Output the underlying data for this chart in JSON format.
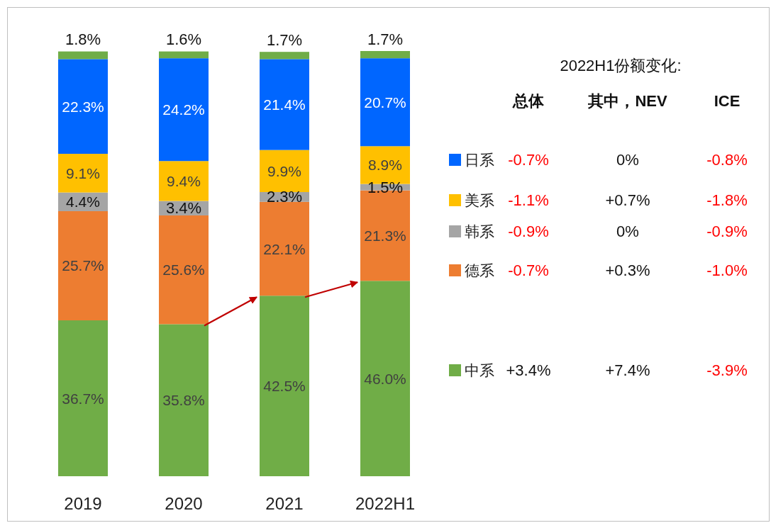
{
  "chart_data": {
    "type": "bar",
    "stacked": true,
    "legend": "right",
    "categories": [
      "2019",
      "2020",
      "2021",
      "2022H1"
    ],
    "series": [
      {
        "name": "中系",
        "color": "#70ad47",
        "values": [
          36.7,
          35.8,
          42.5,
          46.0
        ],
        "value_labels": [
          "36.7%",
          "35.8%",
          "42.5%",
          "46.0%"
        ]
      },
      {
        "name": "德系",
        "color": "#ed7d31",
        "values": [
          25.7,
          25.6,
          22.1,
          21.3
        ],
        "value_labels": [
          "25.7%",
          "25.6%",
          "22.1%",
          "21.3%"
        ]
      },
      {
        "name": "韩系",
        "color": "#a5a5a5",
        "values": [
          4.4,
          3.4,
          2.3,
          1.5
        ],
        "value_labels": [
          "4.4%",
          "3.4%",
          "2.3%",
          "1.5%"
        ]
      },
      {
        "name": "美系",
        "color": "#ffc000",
        "values": [
          9.1,
          9.4,
          9.9,
          8.9
        ],
        "value_labels": [
          "9.1%",
          "9.4%",
          "9.9%",
          "8.9%"
        ]
      },
      {
        "name": "日系",
        "color": "#0066ff",
        "values": [
          22.3,
          24.2,
          21.4,
          20.7
        ],
        "value_labels": [
          "22.3%",
          "24.2%",
          "21.4%",
          "20.7%"
        ]
      },
      {
        "color": "#70ad47",
        "values": [
          1.8,
          1.6,
          1.7,
          1.7
        ],
        "value_labels": [
          "1.8%",
          "1.6%",
          "1.7%",
          "1.7%"
        ]
      }
    ],
    "annotations": [
      "2022H1份额变化:",
      "总体",
      "其中，NEV",
      "ICE",
      "-0.7%",
      "0%",
      "-0.8%",
      "-1.1%",
      "+0.7%",
      "-1.8%",
      "-0.9%",
      "0%",
      "-0.9%",
      "-0.7%",
      "+0.3%",
      "-1.0%",
      "+3.4%",
      "+7.4%",
      "-3.9%"
    ]
  }
}
